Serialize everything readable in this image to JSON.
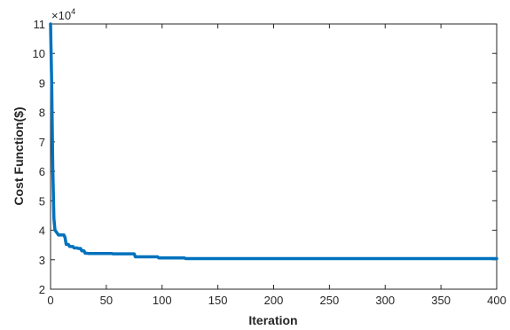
{
  "chart_data": {
    "type": "line",
    "title": "",
    "xlabel": "Iteration",
    "ylabel": "Cost Function($)",
    "y_exponent_label": "×10",
    "y_exponent_power": "4",
    "xlim": [
      0,
      400
    ],
    "ylim": [
      2,
      11
    ],
    "x_ticks": [
      0,
      50,
      100,
      150,
      200,
      250,
      300,
      350,
      400
    ],
    "y_ticks": [
      2,
      3,
      4,
      5,
      6,
      7,
      8,
      9,
      10,
      11
    ],
    "grid": false,
    "line_color": "#0072BD",
    "series": [
      {
        "x": [
          0,
          1,
          2,
          3,
          4,
          5,
          6,
          7,
          10,
          12,
          13,
          14,
          16,
          17,
          20,
          21,
          24,
          25,
          27,
          28,
          30,
          31,
          33,
          34,
          55,
          56,
          75,
          76,
          96,
          97,
          120,
          121,
          400
        ],
        "y": [
          11.0,
          9.0,
          6.1,
          4.4,
          4.0,
          3.95,
          3.9,
          3.84,
          3.84,
          3.84,
          3.75,
          3.52,
          3.52,
          3.45,
          3.45,
          3.4,
          3.4,
          3.38,
          3.38,
          3.3,
          3.3,
          3.22,
          3.22,
          3.21,
          3.21,
          3.2,
          3.2,
          3.1,
          3.1,
          3.06,
          3.06,
          3.04,
          3.04
        ]
      }
    ]
  }
}
